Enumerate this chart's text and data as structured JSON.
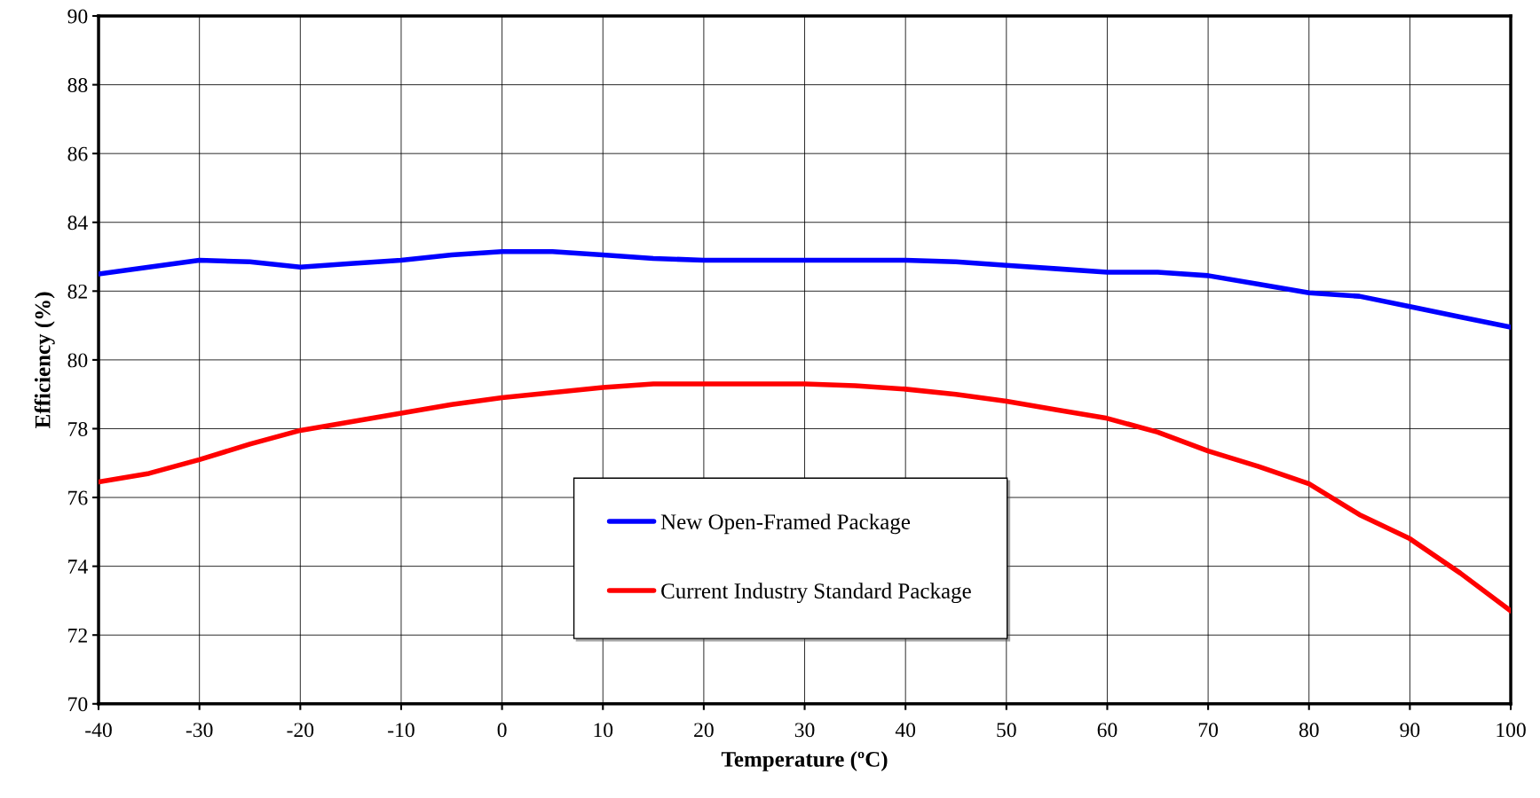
{
  "chart_data": {
    "type": "line",
    "xlabel": "Temperature (ºC)",
    "ylabel": "Efficiency (%)",
    "x": [
      -40,
      -35,
      -30,
      -25,
      -20,
      -15,
      -10,
      -5,
      0,
      5,
      10,
      15,
      20,
      25,
      30,
      35,
      40,
      45,
      50,
      55,
      60,
      65,
      70,
      75,
      80,
      85,
      90,
      95,
      100
    ],
    "series": [
      {
        "name": "New Open-Framed Package",
        "color": "#0000ff",
        "values": [
          82.5,
          82.7,
          82.9,
          82.85,
          82.7,
          82.8,
          82.9,
          83.05,
          83.15,
          83.15,
          83.05,
          82.95,
          82.9,
          82.9,
          82.9,
          82.9,
          82.9,
          82.85,
          82.75,
          82.65,
          82.55,
          82.55,
          82.45,
          82.2,
          81.95,
          81.85,
          81.55,
          81.25,
          80.95
        ]
      },
      {
        "name": "Current Industry Standard Package",
        "color": "#ff0000",
        "values": [
          76.45,
          76.7,
          77.1,
          77.55,
          77.95,
          78.2,
          78.45,
          78.7,
          78.9,
          79.05,
          79.2,
          79.3,
          79.3,
          79.3,
          79.3,
          79.25,
          79.15,
          79.0,
          78.8,
          78.55,
          78.3,
          77.9,
          77.35,
          76.9,
          76.4,
          75.5,
          74.8,
          73.8,
          72.7
        ]
      }
    ],
    "xlim": [
      -40,
      100
    ],
    "xticks": [
      -40,
      -30,
      -20,
      -10,
      0,
      10,
      20,
      30,
      40,
      50,
      60,
      70,
      80,
      90,
      100
    ],
    "ylim": [
      70,
      90
    ],
    "yticks": [
      70,
      72,
      74,
      76,
      78,
      80,
      82,
      84,
      86,
      88,
      90
    ],
    "grid": true,
    "legend": "bottom",
    "marker": "none",
    "line_style": "solid"
  }
}
